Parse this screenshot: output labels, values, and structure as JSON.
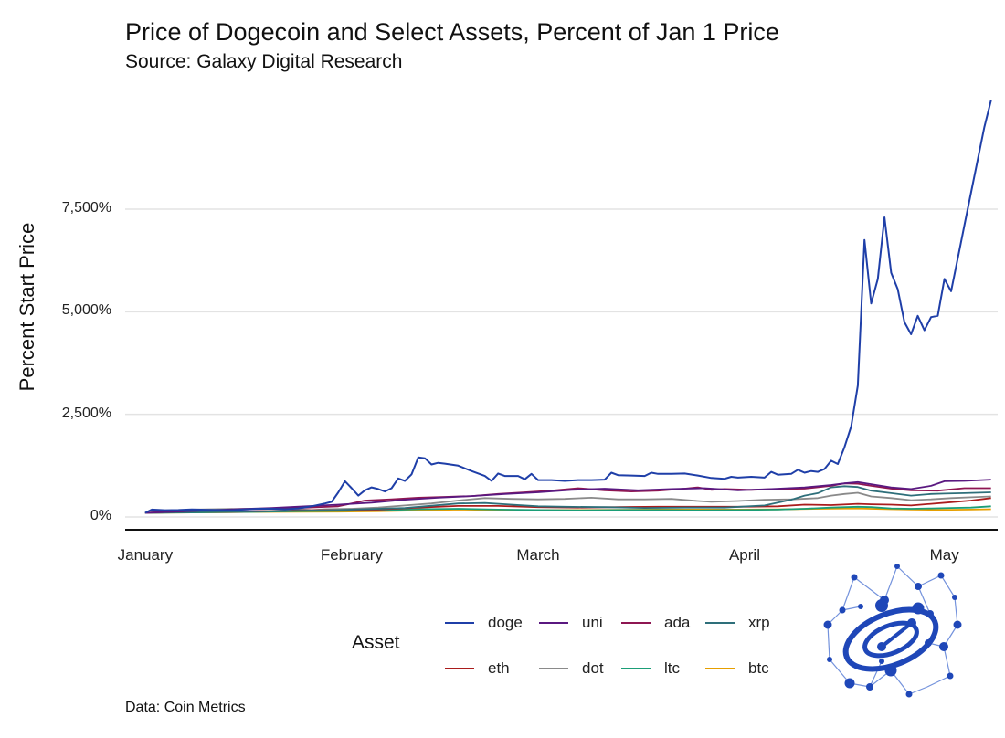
{
  "chart_data": {
    "type": "line",
    "title": "Price of Dogecoin and Select Assets, Percent of Jan 1 Price",
    "subtitle": "Source: Galaxy Digital Research",
    "xlabel": "",
    "ylabel": "Percent Start Price",
    "ylim": [
      -300,
      10200
    ],
    "y_ticks": [
      0,
      2500,
      5000,
      7500
    ],
    "y_tick_labels": [
      "0%",
      "2,500%",
      "5,000%",
      "7,500%"
    ],
    "x_ticks": [
      1,
      32,
      60,
      91,
      121
    ],
    "x_tick_labels": [
      "January",
      "February",
      "March",
      "April",
      "May"
    ],
    "xlim": [
      -2,
      129
    ],
    "legend_title": "Asset",
    "legend_position": "bottom",
    "caption": "Data: Coin Metrics",
    "series": [
      {
        "name": "doge",
        "color": "#1f3fa8",
        "points": [
          [
            1,
            100
          ],
          [
            2,
            180
          ],
          [
            4,
            165
          ],
          [
            6,
            170
          ],
          [
            8,
            185
          ],
          [
            10,
            175
          ],
          [
            12,
            170
          ],
          [
            14,
            165
          ],
          [
            16,
            185
          ],
          [
            18,
            200
          ],
          [
            20,
            200
          ],
          [
            22,
            190
          ],
          [
            24,
            210
          ],
          [
            26,
            260
          ],
          [
            28,
            330
          ],
          [
            29,
            370
          ],
          [
            30,
            600
          ],
          [
            31,
            870
          ],
          [
            32,
            700
          ],
          [
            33,
            520
          ],
          [
            34,
            650
          ],
          [
            35,
            720
          ],
          [
            36,
            680
          ],
          [
            37,
            620
          ],
          [
            38,
            700
          ],
          [
            39,
            940
          ],
          [
            40,
            880
          ],
          [
            41,
            1040
          ],
          [
            42,
            1450
          ],
          [
            43,
            1430
          ],
          [
            44,
            1280
          ],
          [
            45,
            1320
          ],
          [
            46,
            1300
          ],
          [
            48,
            1250
          ],
          [
            50,
            1120
          ],
          [
            52,
            1000
          ],
          [
            53,
            880
          ],
          [
            54,
            1060
          ],
          [
            55,
            1000
          ],
          [
            57,
            1000
          ],
          [
            58,
            920
          ],
          [
            59,
            1050
          ],
          [
            60,
            900
          ],
          [
            62,
            900
          ],
          [
            64,
            880
          ],
          [
            66,
            900
          ],
          [
            68,
            900
          ],
          [
            70,
            910
          ],
          [
            71,
            1080
          ],
          [
            72,
            1020
          ],
          [
            74,
            1010
          ],
          [
            76,
            1000
          ],
          [
            77,
            1080
          ],
          [
            78,
            1050
          ],
          [
            80,
            1050
          ],
          [
            82,
            1060
          ],
          [
            84,
            1010
          ],
          [
            86,
            950
          ],
          [
            88,
            930
          ],
          [
            89,
            980
          ],
          [
            90,
            960
          ],
          [
            92,
            980
          ],
          [
            94,
            960
          ],
          [
            95,
            1100
          ],
          [
            96,
            1030
          ],
          [
            98,
            1050
          ],
          [
            99,
            1150
          ],
          [
            100,
            1080
          ],
          [
            101,
            1120
          ],
          [
            102,
            1100
          ],
          [
            103,
            1170
          ],
          [
            104,
            1370
          ],
          [
            105,
            1290
          ],
          [
            106,
            1700
          ],
          [
            107,
            2200
          ],
          [
            108,
            3200
          ],
          [
            109,
            6750
          ],
          [
            110,
            5200
          ],
          [
            111,
            5800
          ],
          [
            112,
            7300
          ],
          [
            113,
            5950
          ],
          [
            114,
            5550
          ],
          [
            115,
            4750
          ],
          [
            116,
            4450
          ],
          [
            117,
            4900
          ],
          [
            118,
            4550
          ],
          [
            119,
            4870
          ],
          [
            120,
            4900
          ],
          [
            121,
            5800
          ],
          [
            122,
            5500
          ],
          [
            123,
            6300
          ],
          [
            124,
            7100
          ],
          [
            125,
            7900
          ],
          [
            126,
            8700
          ],
          [
            127,
            9500
          ],
          [
            128,
            10150
          ]
        ]
      },
      {
        "name": "uni",
        "color": "#5a1880",
        "points": [
          [
            1,
            100
          ],
          [
            10,
            160
          ],
          [
            20,
            220
          ],
          [
            30,
            300
          ],
          [
            35,
            350
          ],
          [
            40,
            420
          ],
          [
            45,
            470
          ],
          [
            50,
            510
          ],
          [
            55,
            560
          ],
          [
            60,
            600
          ],
          [
            65,
            660
          ],
          [
            70,
            690
          ],
          [
            75,
            650
          ],
          [
            80,
            680
          ],
          [
            85,
            700
          ],
          [
            90,
            650
          ],
          [
            95,
            680
          ],
          [
            100,
            720
          ],
          [
            104,
            780
          ],
          [
            106,
            820
          ],
          [
            108,
            850
          ],
          [
            110,
            800
          ],
          [
            113,
            720
          ],
          [
            116,
            680
          ],
          [
            119,
            760
          ],
          [
            121,
            870
          ],
          [
            124,
            880
          ],
          [
            128,
            910
          ]
        ]
      },
      {
        "name": "ada",
        "color": "#8e1652",
        "points": [
          [
            1,
            100
          ],
          [
            8,
            150
          ],
          [
            16,
            180
          ],
          [
            24,
            220
          ],
          [
            30,
            260
          ],
          [
            34,
            400
          ],
          [
            38,
            430
          ],
          [
            42,
            470
          ],
          [
            46,
            490
          ],
          [
            50,
            510
          ],
          [
            54,
            560
          ],
          [
            58,
            600
          ],
          [
            62,
            640
          ],
          [
            66,
            700
          ],
          [
            70,
            650
          ],
          [
            74,
            620
          ],
          [
            78,
            640
          ],
          [
            82,
            690
          ],
          [
            84,
            720
          ],
          [
            86,
            660
          ],
          [
            88,
            680
          ],
          [
            92,
            660
          ],
          [
            96,
            680
          ],
          [
            100,
            690
          ],
          [
            104,
            760
          ],
          [
            106,
            820
          ],
          [
            108,
            810
          ],
          [
            110,
            760
          ],
          [
            113,
            690
          ],
          [
            116,
            650
          ],
          [
            120,
            640
          ],
          [
            124,
            700
          ],
          [
            128,
            700
          ]
        ]
      },
      {
        "name": "xrp",
        "color": "#2e6f7a",
        "points": [
          [
            1,
            100
          ],
          [
            10,
            120
          ],
          [
            20,
            140
          ],
          [
            30,
            170
          ],
          [
            40,
            220
          ],
          [
            48,
            330
          ],
          [
            52,
            340
          ],
          [
            56,
            300
          ],
          [
            60,
            260
          ],
          [
            64,
            250
          ],
          [
            70,
            240
          ],
          [
            76,
            220
          ],
          [
            82,
            230
          ],
          [
            88,
            230
          ],
          [
            94,
            280
          ],
          [
            98,
            420
          ],
          [
            100,
            520
          ],
          [
            102,
            580
          ],
          [
            104,
            720
          ],
          [
            106,
            750
          ],
          [
            108,
            730
          ],
          [
            110,
            640
          ],
          [
            113,
            580
          ],
          [
            116,
            520
          ],
          [
            119,
            560
          ],
          [
            121,
            570
          ],
          [
            124,
            580
          ],
          [
            128,
            600
          ]
        ]
      },
      {
        "name": "eth",
        "color": "#aa1c1c",
        "points": [
          [
            1,
            100
          ],
          [
            8,
            120
          ],
          [
            16,
            130
          ],
          [
            24,
            160
          ],
          [
            30,
            170
          ],
          [
            36,
            180
          ],
          [
            42,
            230
          ],
          [
            48,
            270
          ],
          [
            54,
            270
          ],
          [
            60,
            240
          ],
          [
            66,
            230
          ],
          [
            72,
            240
          ],
          [
            78,
            250
          ],
          [
            84,
            250
          ],
          [
            90,
            250
          ],
          [
            96,
            260
          ],
          [
            100,
            300
          ],
          [
            104,
            290
          ],
          [
            108,
            320
          ],
          [
            110,
            310
          ],
          [
            113,
            300
          ],
          [
            116,
            280
          ],
          [
            119,
            320
          ],
          [
            122,
            360
          ],
          [
            125,
            400
          ],
          [
            128,
            460
          ]
        ]
      },
      {
        "name": "dot",
        "color": "#8a8a8a",
        "points": [
          [
            1,
            100
          ],
          [
            8,
            180
          ],
          [
            16,
            200
          ],
          [
            22,
            210
          ],
          [
            26,
            170
          ],
          [
            28,
            190
          ],
          [
            32,
            200
          ],
          [
            36,
            230
          ],
          [
            40,
            280
          ],
          [
            44,
            330
          ],
          [
            48,
            400
          ],
          [
            52,
            460
          ],
          [
            56,
            440
          ],
          [
            60,
            430
          ],
          [
            64,
            440
          ],
          [
            68,
            470
          ],
          [
            72,
            430
          ],
          [
            76,
            430
          ],
          [
            80,
            440
          ],
          [
            84,
            390
          ],
          [
            86,
            370
          ],
          [
            90,
            390
          ],
          [
            94,
            420
          ],
          [
            98,
            430
          ],
          [
            102,
            460
          ],
          [
            104,
            520
          ],
          [
            106,
            560
          ],
          [
            108,
            590
          ],
          [
            110,
            500
          ],
          [
            113,
            460
          ],
          [
            116,
            410
          ],
          [
            119,
            430
          ],
          [
            122,
            460
          ],
          [
            125,
            480
          ],
          [
            128,
            500
          ]
        ]
      },
      {
        "name": "ltc",
        "color": "#1b9e77",
        "points": [
          [
            1,
            100
          ],
          [
            8,
            110
          ],
          [
            16,
            120
          ],
          [
            24,
            140
          ],
          [
            30,
            150
          ],
          [
            36,
            160
          ],
          [
            42,
            190
          ],
          [
            48,
            200
          ],
          [
            54,
            180
          ],
          [
            60,
            170
          ],
          [
            66,
            160
          ],
          [
            72,
            170
          ],
          [
            78,
            170
          ],
          [
            84,
            160
          ],
          [
            90,
            170
          ],
          [
            96,
            180
          ],
          [
            100,
            200
          ],
          [
            104,
            230
          ],
          [
            108,
            250
          ],
          [
            110,
            240
          ],
          [
            113,
            210
          ],
          [
            116,
            200
          ],
          [
            119,
            210
          ],
          [
            122,
            220
          ],
          [
            125,
            230
          ],
          [
            128,
            260
          ]
        ]
      },
      {
        "name": "btc",
        "color": "#e69f00",
        "points": [
          [
            1,
            100
          ],
          [
            8,
            110
          ],
          [
            16,
            120
          ],
          [
            24,
            125
          ],
          [
            30,
            130
          ],
          [
            36,
            140
          ],
          [
            42,
            160
          ],
          [
            48,
            180
          ],
          [
            54,
            170
          ],
          [
            60,
            170
          ],
          [
            66,
            170
          ],
          [
            72,
            175
          ],
          [
            78,
            180
          ],
          [
            84,
            180
          ],
          [
            90,
            180
          ],
          [
            96,
            185
          ],
          [
            100,
            195
          ],
          [
            104,
            205
          ],
          [
            108,
            210
          ],
          [
            110,
            200
          ],
          [
            113,
            190
          ],
          [
            116,
            180
          ],
          [
            119,
            175
          ],
          [
            122,
            175
          ],
          [
            125,
            180
          ],
          [
            128,
            190
          ]
        ]
      }
    ]
  }
}
